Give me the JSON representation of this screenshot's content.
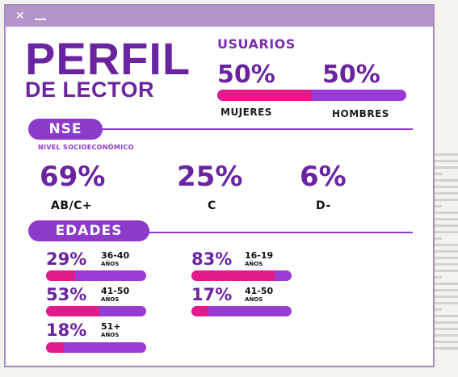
{
  "window": {
    "close_icon": "close-icon",
    "minimize_icon": "minimize-icon"
  },
  "title": {
    "line1": "PERFIL",
    "line2": "DE LECTOR"
  },
  "users": {
    "heading": "USUARIOS",
    "women_pct": "50%",
    "men_pct": "50%",
    "women_label": "MUJERES",
    "men_label": "HOMBRES",
    "women_share": 0.5
  },
  "nse": {
    "heading": "NSE",
    "subtitle": "NIVEL SOCIOECONÓMICO",
    "items": [
      {
        "value": "69%",
        "label": "AB/C+"
      },
      {
        "value": "25%",
        "label": "C"
      },
      {
        "value": "6%",
        "label": "D-"
      }
    ]
  },
  "ages": {
    "heading": "EDADES",
    "unit": "AÑOS",
    "items": [
      {
        "value": "29%",
        "range": "36-40",
        "share": 0.29
      },
      {
        "value": "53%",
        "range": "41-50",
        "share": 0.53
      },
      {
        "value": "18%",
        "range": "51+",
        "share": 0.18
      },
      {
        "value": "83%",
        "range": "16-19",
        "share": 0.83
      },
      {
        "value": "17%",
        "range": "41-50",
        "share": 0.17
      }
    ]
  },
  "colors": {
    "accent": "#6a24a0",
    "pill": "#8c3ac9",
    "bar": "#9a3bd6",
    "fill": "#e21a8a"
  }
}
